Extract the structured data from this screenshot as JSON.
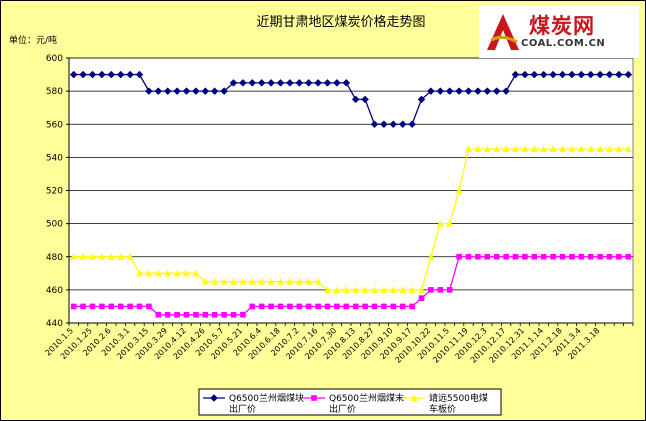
{
  "chart_data": {
    "type": "line",
    "title": "近期甘肃地区煤炭价格走势图",
    "unit_label": "单位：元/吨",
    "ylim": [
      440,
      600
    ],
    "yticks": [
      440,
      460,
      480,
      500,
      520,
      540,
      560,
      580,
      600
    ],
    "grid": true,
    "legend_position": "bottom",
    "x_tick_labels": [
      "2010.1.5",
      "2010.1.25",
      "2010.2.6",
      "2010.3.1",
      "2010.3.15",
      "2010.3.29",
      "2010.4.12",
      "2010.4.26",
      "2010.5.7",
      "2010.5.21",
      "2010.6.4",
      "2010.6.18",
      "2010.7.2",
      "2010.7.16",
      "2010.7.30",
      "2010.8.13",
      "2010.8.27",
      "2010.9.10",
      "2010.9.17",
      "2010.10.22",
      "2010.11.5",
      "2010.11.19",
      "2010.12.3",
      "2010.12.17",
      "2010.12.31",
      "2011.1.14",
      "2011.2.18",
      "2011.3.4",
      "2011.3.18"
    ],
    "series": [
      {
        "name": "Q6500兰州烟煤块出厂价",
        "color": "#000080",
        "marker": "diamond",
        "values": [
          590,
          590,
          590,
          590,
          590,
          590,
          590,
          590,
          580,
          580,
          580,
          580,
          580,
          580,
          580,
          580,
          580,
          585,
          585,
          585,
          585,
          585,
          585,
          585,
          585,
          585,
          585,
          585,
          585,
          585,
          575,
          575,
          560,
          560,
          560,
          560,
          560,
          575,
          580,
          580,
          580,
          580,
          580,
          580,
          580,
          580,
          580,
          590,
          590,
          590,
          590,
          590,
          590,
          590,
          590,
          590,
          590,
          590,
          590,
          590
        ]
      },
      {
        "name": "Q6500兰州烟煤末出厂价",
        "color": "#ff00ff",
        "marker": "square",
        "values": [
          450,
          450,
          450,
          450,
          450,
          450,
          450,
          450,
          450,
          445,
          445,
          445,
          445,
          445,
          445,
          445,
          445,
          445,
          445,
          450,
          450,
          450,
          450,
          450,
          450,
          450,
          450,
          450,
          450,
          450,
          450,
          450,
          450,
          450,
          450,
          450,
          450,
          455,
          460,
          460,
          460,
          480,
          480,
          480,
          480,
          480,
          480,
          480,
          480,
          480,
          480,
          480,
          480,
          480,
          480,
          480,
          480,
          480,
          480,
          480
        ]
      },
      {
        "name": "靖远5500电煤车板价",
        "color": "#ffff00",
        "marker": "triangle",
        "values": [
          480,
          480,
          480,
          480,
          480,
          480,
          480,
          470,
          470,
          470,
          470,
          470,
          470,
          470,
          465,
          465,
          465,
          465,
          465,
          465,
          465,
          465,
          465,
          465,
          465,
          465,
          465,
          460,
          460,
          460,
          460,
          460,
          460,
          460,
          460,
          460,
          460,
          460,
          480,
          500,
          500,
          520,
          545,
          545,
          545,
          545,
          545,
          545,
          545,
          545,
          545,
          545,
          545,
          545,
          545,
          545,
          545,
          545,
          545,
          545
        ]
      }
    ]
  },
  "legend": [
    {
      "line1": "Q6500兰州烟煤块",
      "line2": "出厂价"
    },
    {
      "line1": "Q6500兰州烟煤末",
      "line2": "出厂价"
    },
    {
      "line1": "靖远5500电煤",
      "line2": "车板价"
    }
  ],
  "logo": {
    "text_cn": "煤炭网",
    "text_en": "COAL.COM.CN"
  }
}
